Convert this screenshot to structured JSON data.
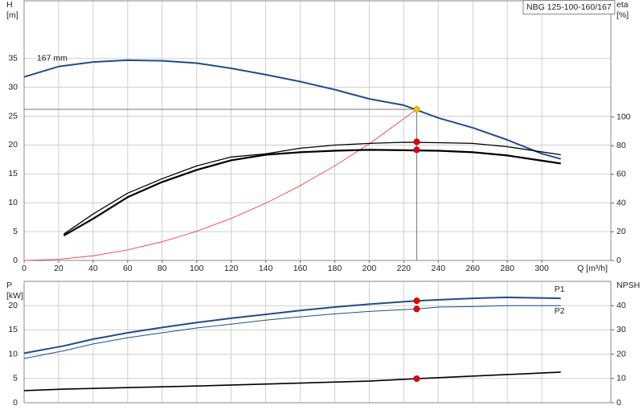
{
  "chart_data": [
    {
      "type": "line",
      "title": "NBG 125-100-160/167",
      "ylabel": [
        "H",
        "[m]"
      ],
      "y2label": [
        "eta",
        "[%]"
      ],
      "xlabel": "Q [m³/h]",
      "xlim": [
        0,
        340
      ],
      "xticks": [
        0,
        20,
        40,
        60,
        80,
        100,
        120,
        140,
        160,
        180,
        200,
        220,
        240,
        260,
        280,
        300
      ],
      "ylim": [
        0,
        45
      ],
      "yticks": [
        0,
        5,
        10,
        15,
        20,
        25,
        30,
        35
      ],
      "y2lim": [
        0,
        181
      ],
      "y2ticks": [
        0,
        20,
        40,
        60,
        80,
        100
      ],
      "grid": true,
      "series": [
        {
          "name": "167 mm",
          "color": "#1f4e8c",
          "width": 2,
          "label_pos": "start",
          "x": [
            0,
            20,
            40,
            60,
            80,
            100,
            120,
            140,
            160,
            180,
            200,
            220,
            240,
            260,
            280,
            300,
            311
          ],
          "values": [
            31.8,
            33.6,
            34.4,
            34.7,
            34.6,
            34.2,
            33.3,
            32.2,
            31.0,
            29.6,
            28.0,
            26.9,
            24.7,
            23.0,
            20.9,
            18.5,
            17.6
          ],
          "point": {
            "x": 227.5,
            "y": 26.2
          },
          "point_color": "#f5c400",
          "guides": true
        },
        {
          "color": "#e8312f",
          "width": 0.8,
          "x": [
            0,
            20,
            40,
            60,
            80,
            100,
            120,
            140,
            160,
            180,
            200,
            227.5
          ],
          "values": [
            0,
            0.2,
            0.81,
            1.82,
            3.24,
            5.06,
            7.29,
            9.92,
            12.95,
            16.4,
            20.2,
            26.2
          ]
        },
        {
          "color": "#000000",
          "width": 1.3,
          "axis": "y2",
          "x": [
            23,
            40,
            60,
            80,
            100,
            120,
            140,
            160,
            180,
            200,
            220,
            240,
            260,
            280,
            311
          ],
          "values": [
            18.4,
            32.4,
            46.9,
            57.0,
            65.9,
            72.1,
            74.3,
            78.2,
            80.4,
            81.6,
            82.4,
            82.1,
            81.6,
            79.3,
            73.7
          ],
          "point": {
            "x": 227.5,
            "y": 82.7
          },
          "point_color": "#e8000b"
        },
        {
          "color": "#000000",
          "width": 2.2,
          "axis": "y2",
          "x": [
            23,
            40,
            60,
            80,
            100,
            120,
            140,
            160,
            180,
            200,
            220,
            240,
            260,
            280,
            311
          ],
          "values": [
            17.3,
            29.1,
            44.1,
            54.7,
            63.1,
            69.8,
            73.7,
            75.4,
            76.5,
            77.1,
            76.8,
            76.5,
            75.4,
            73.2,
            67.6
          ],
          "point": {
            "x": 227.5,
            "y": 77.1
          },
          "point_color": "#e8000b"
        }
      ]
    },
    {
      "type": "line",
      "ylabel": [
        "P",
        "[kW]"
      ],
      "y2label": [
        "NPSH"
      ],
      "xlim": [
        0,
        340
      ],
      "xticks": [
        0,
        20,
        40,
        60,
        80,
        100,
        120,
        140,
        160,
        180,
        200,
        220,
        240,
        260,
        280,
        300
      ],
      "ylim": [
        0,
        25
      ],
      "yticks": [
        0,
        5,
        10,
        15,
        20
      ],
      "y2lim": [
        0,
        50
      ],
      "y2ticks": [
        0,
        10,
        20,
        30,
        40
      ],
      "grid": true,
      "series": [
        {
          "name": "P1",
          "color": "#1f4e8c",
          "width": 2,
          "label_pos": "end",
          "x": [
            0,
            23,
            40,
            60,
            80,
            100,
            120,
            140,
            160,
            180,
            200,
            227.5,
            240,
            260,
            280,
            311
          ],
          "values": [
            10.2,
            11.7,
            13.1,
            14.4,
            15.5,
            16.5,
            17.4,
            18.2,
            19.0,
            19.7,
            20.3,
            21.0,
            21.2,
            21.5,
            21.7,
            21.5
          ],
          "point": {
            "x": 227.5,
            "y": 21.0
          },
          "point_color": "#e8000b"
        },
        {
          "name": "P2",
          "color": "#1f4e8c",
          "width": 1,
          "label_pos": "end",
          "x": [
            0,
            23,
            40,
            60,
            80,
            100,
            120,
            140,
            160,
            180,
            200,
            227.5,
            240,
            260,
            280,
            311
          ],
          "values": [
            9.1,
            10.7,
            12.1,
            13.4,
            14.4,
            15.4,
            16.2,
            17.0,
            17.7,
            18.3,
            18.8,
            19.3,
            19.7,
            19.8,
            20.0,
            20.0
          ],
          "point": {
            "x": 227.5,
            "y": 19.3
          },
          "point_color": "#e8000b"
        },
        {
          "color": "#000000",
          "width": 1.6,
          "axis": "y2",
          "x": [
            0,
            23,
            100,
            200,
            227.5,
            311
          ],
          "values": [
            5.0,
            5.6,
            6.9,
            8.9,
            9.9,
            12.6
          ],
          "point": {
            "x": 227.5,
            "y": 9.9
          },
          "point_color": "#e8000b"
        }
      ]
    }
  ]
}
